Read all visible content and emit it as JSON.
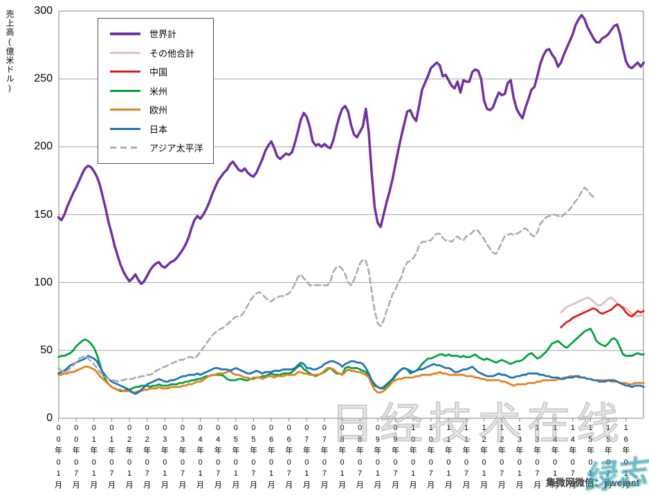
{
  "axes": {
    "y_title": "売上高(億米ドル)",
    "y_ticks": [
      "0",
      "50",
      "100",
      "150",
      "200",
      "250",
      "300"
    ],
    "y_tick_values": [
      0,
      50,
      100,
      150,
      200,
      250,
      300
    ],
    "x_ticks": [
      "00年01月",
      "00年07月",
      "01年01月",
      "01年07月",
      "02年01月",
      "02年07月",
      "03年01月",
      "03年07月",
      "04年01月",
      "04年07月",
      "05年01月",
      "05年07月",
      "06年01月",
      "06年07月",
      "07年01月",
      "07年07月",
      "08年01月",
      "08年07月",
      "09年01月",
      "09年07月",
      "10年01月",
      "10年07月",
      "11年01月",
      "11年07月",
      "12年01月",
      "12年07月",
      "13年01月",
      "13年07月",
      "14年01月",
      "14年07月",
      "15年01月",
      "15年07月",
      "16年01月"
    ]
  },
  "watermarks": {
    "center": "日经技术在线",
    "bottom_right": "集微网微信：jiweinet",
    "signature": "绿志岛"
  },
  "chart_data": {
    "type": "line",
    "title": "",
    "ylabel": "売上高(億米ドル)",
    "ylim": [
      0,
      300
    ],
    "x_start": "2000-01",
    "x_end": "2016-07",
    "x_interval": "monthly",
    "grid": true,
    "legend_position": "upper-left-box",
    "series": [
      {
        "name": "世界計",
        "key": "world",
        "color": "#7030a0",
        "dashed": false,
        "width": 3.5,
        "start_index": 0,
        "values": [
          148,
          146,
          150,
          156,
          161,
          166,
          170,
          175,
          180,
          184,
          186,
          185,
          182,
          178,
          172,
          163,
          154,
          144,
          136,
          127,
          120,
          113,
          108,
          104,
          101,
          103,
          106,
          102,
          99,
          101,
          105,
          109,
          112,
          114,
          115,
          112,
          111,
          113,
          115,
          116,
          118,
          121,
          124,
          128,
          133,
          140,
          146,
          149,
          147,
          150,
          154,
          159,
          165,
          170,
          175,
          178,
          181,
          183,
          187,
          189,
          186,
          183,
          182,
          184,
          181,
          179,
          178,
          181,
          186,
          191,
          197,
          201,
          204,
          199,
          193,
          191,
          193,
          195,
          194,
          196,
          203,
          211,
          220,
          225,
          222,
          215,
          204,
          201,
          202,
          200,
          202,
          200,
          199,
          205,
          214,
          222,
          228,
          230,
          226,
          216,
          209,
          207,
          211,
          215,
          228,
          210,
          180,
          155,
          144,
          141,
          150,
          159,
          167,
          176,
          187,
          198,
          208,
          217,
          226,
          227,
          222,
          219,
          230,
          242,
          247,
          252,
          258,
          260,
          262,
          260,
          252,
          253,
          249,
          245,
          243,
          248,
          240,
          249,
          248,
          248,
          255,
          257,
          256,
          250,
          234,
          228,
          227,
          229,
          235,
          240,
          238,
          239,
          247,
          249,
          236,
          228,
          224,
          221,
          229,
          235,
          242,
          244,
          252,
          261,
          267,
          271,
          272,
          268,
          265,
          259,
          262,
          268,
          273,
          278,
          283,
          290,
          294,
          297,
          294,
          288,
          284,
          280,
          277,
          277,
          280,
          281,
          283,
          286,
          289,
          290,
          283,
          272,
          263,
          259,
          258,
          260,
          262,
          259,
          262
        ]
      },
      {
        "name": "その他合計",
        "key": "others-total",
        "color": "#dfc0bf",
        "dashed": false,
        "width": 2.8,
        "start_index": 170,
        "values": [
          78,
          80,
          82,
          83,
          84,
          85,
          86,
          87,
          88,
          89,
          88,
          86,
          84,
          83,
          84,
          86,
          88,
          89,
          87,
          85,
          83,
          82,
          81,
          79,
          77,
          76,
          75,
          76,
          75
        ]
      },
      {
        "name": "中国",
        "key": "china",
        "color": "#dd1d1d",
        "dashed": false,
        "width": 2.8,
        "start_index": 170,
        "values": [
          67,
          69,
          71,
          72,
          74,
          75,
          76,
          77,
          78,
          79,
          80,
          81,
          80,
          78,
          77,
          78,
          79,
          80,
          82,
          84,
          83,
          81,
          78,
          76,
          75,
          77,
          79,
          78,
          79
        ]
      },
      {
        "name": "米州",
        "key": "americas",
        "color": "#00a23c",
        "dashed": false,
        "width": 2.8,
        "start_index": 0,
        "values": [
          45,
          46,
          46,
          47,
          48,
          50,
          53,
          55,
          57,
          58,
          57,
          55,
          52,
          47,
          40,
          33,
          28,
          25,
          23,
          22,
          21,
          20,
          20,
          21,
          21,
          22,
          23,
          23,
          24,
          24,
          24,
          23,
          24,
          24,
          25,
          24,
          24,
          24,
          25,
          25,
          25,
          26,
          26,
          27,
          27,
          28,
          28,
          29,
          29,
          30,
          31,
          31,
          32,
          32,
          32,
          32,
          31,
          29,
          28,
          28,
          28,
          29,
          29,
          28,
          28,
          29,
          29,
          30,
          30,
          31,
          31,
          32,
          33,
          32,
          32,
          32,
          33,
          33,
          33,
          34,
          36,
          38,
          39,
          36,
          35,
          33,
          32,
          31,
          32,
          33,
          34,
          36,
          37,
          35,
          33,
          33,
          32,
          37,
          38,
          37,
          37,
          37,
          36,
          35,
          34,
          31,
          26,
          24,
          23,
          22,
          22,
          24,
          26,
          28,
          31,
          34,
          36,
          37,
          36,
          33,
          34,
          35,
          37,
          40,
          42,
          44,
          44,
          45,
          46,
          47,
          47,
          46,
          47,
          46,
          46,
          46,
          45,
          46,
          45,
          45,
          46,
          47,
          45,
          44,
          43,
          44,
          43,
          42,
          41,
          42,
          43,
          42,
          41,
          40,
          41,
          42,
          42,
          43,
          45,
          47,
          48,
          46,
          44,
          45,
          47,
          49,
          52,
          55,
          56,
          57,
          55,
          53,
          52,
          54,
          56,
          58,
          60,
          62,
          64,
          65,
          66,
          62,
          57,
          55,
          54,
          53,
          55,
          58,
          59,
          57,
          52,
          47,
          46,
          46,
          46,
          47,
          48,
          47,
          47
        ]
      },
      {
        "name": "欧州",
        "key": "europe",
        "color": "#e0821e",
        "dashed": false,
        "width": 2.8,
        "start_index": 0,
        "values": [
          32,
          32,
          33,
          33,
          34,
          34,
          35,
          36,
          37,
          38,
          38,
          37,
          36,
          34,
          31,
          29,
          27,
          25,
          23,
          22,
          21,
          21,
          20,
          20,
          20,
          19,
          19,
          20,
          20,
          21,
          21,
          22,
          22,
          22,
          23,
          22,
          22,
          22,
          23,
          23,
          23,
          23,
          24,
          24,
          25,
          25,
          26,
          27,
          27,
          28,
          30,
          31,
          32,
          32,
          33,
          33,
          33,
          34,
          35,
          33,
          32,
          32,
          31,
          30,
          30,
          29,
          30,
          30,
          30,
          29,
          30,
          31,
          31,
          30,
          31,
          31,
          31,
          32,
          32,
          32,
          32,
          34,
          34,
          33,
          33,
          32,
          32,
          32,
          32,
          33,
          35,
          37,
          37,
          36,
          34,
          33,
          32,
          34,
          36,
          35,
          35,
          34,
          34,
          33,
          32,
          30,
          25,
          21,
          19,
          19,
          20,
          22,
          24,
          27,
          28,
          29,
          29,
          30,
          30,
          30,
          30,
          31,
          31,
          32,
          32,
          32,
          32,
          33,
          33,
          34,
          33,
          33,
          32,
          32,
          32,
          32,
          32,
          32,
          31,
          31,
          31,
          30,
          30,
          29,
          29,
          28,
          28,
          28,
          28,
          28,
          27,
          27,
          26,
          25,
          24,
          25,
          25,
          25,
          25,
          26,
          26,
          26,
          27,
          27,
          28,
          28,
          28,
          28,
          28,
          29,
          29,
          30,
          30,
          31,
          31,
          31,
          30,
          30,
          30,
          29,
          29,
          28,
          28,
          28,
          28,
          28,
          28,
          27,
          27,
          27,
          26,
          26,
          26,
          25,
          25,
          26,
          26,
          26,
          26
        ]
      },
      {
        "name": "日本",
        "key": "japan",
        "color": "#2074b8",
        "dashed": false,
        "width": 2.8,
        "start_index": 0,
        "values": [
          33,
          34,
          35,
          37,
          39,
          40,
          41,
          42,
          43,
          44,
          46,
          45,
          44,
          42,
          38,
          34,
          31,
          29,
          27,
          26,
          25,
          24,
          23,
          22,
          21,
          19,
          18,
          19,
          21,
          23,
          25,
          26,
          27,
          28,
          29,
          28,
          27,
          27,
          28,
          28,
          29,
          30,
          31,
          31,
          32,
          32,
          32,
          33,
          32,
          33,
          34,
          35,
          36,
          37,
          37,
          36,
          36,
          36,
          35,
          36,
          37,
          36,
          35,
          34,
          33,
          33,
          34,
          35,
          34,
          33,
          34,
          34,
          34,
          35,
          35,
          35,
          36,
          36,
          36,
          36,
          37,
          39,
          41,
          40,
          37,
          37,
          36,
          36,
          37,
          38,
          40,
          41,
          42,
          42,
          41,
          40,
          38,
          40,
          41,
          42,
          42,
          41,
          41,
          40,
          37,
          33,
          28,
          25,
          23,
          22,
          23,
          25,
          27,
          29,
          32,
          34,
          36,
          37,
          36,
          35,
          34,
          35,
          36,
          36,
          37,
          38,
          39,
          40,
          39,
          39,
          38,
          37,
          37,
          36,
          34,
          34,
          35,
          36,
          36,
          37,
          38,
          36,
          34,
          33,
          32,
          31,
          31,
          31,
          32,
          33,
          32,
          32,
          31,
          30,
          30,
          31,
          31,
          32,
          32,
          33,
          33,
          33,
          33,
          32,
          32,
          31,
          31,
          30,
          30,
          30,
          29,
          29,
          30,
          30,
          30,
          31,
          31,
          30,
          30,
          29,
          29,
          28,
          28,
          27,
          27,
          27,
          28,
          28,
          28,
          27,
          26,
          25,
          24,
          24,
          23,
          24,
          24,
          24,
          23
        ]
      },
      {
        "name": "アジア太平洋",
        "key": "asia-pacific",
        "color": "#ababab",
        "dashed": true,
        "width": 2.6,
        "start_index": 0,
        "values": [
          37,
          35,
          34,
          35,
          37,
          39,
          41,
          44,
          45,
          46,
          44,
          42,
          40,
          37,
          34,
          32,
          30,
          29,
          28,
          28,
          27,
          28,
          28,
          29,
          29,
          29,
          30,
          30,
          31,
          31,
          32,
          32,
          33,
          35,
          36,
          37,
          38,
          39,
          40,
          41,
          42,
          43,
          43,
          44,
          45,
          45,
          44,
          46,
          49,
          52,
          55,
          58,
          61,
          63,
          65,
          66,
          67,
          69,
          71,
          73,
          75,
          75,
          76,
          79,
          83,
          87,
          90,
          92,
          93,
          91,
          89,
          87,
          86,
          88,
          89,
          90,
          90,
          91,
          92,
          95,
          99,
          104,
          106,
          103,
          101,
          98,
          98,
          98,
          98,
          98,
          98,
          98,
          101,
          108,
          111,
          112,
          110,
          106,
          100,
          98,
          102,
          108,
          114,
          117,
          116,
          108,
          93,
          79,
          70,
          68,
          72,
          79,
          85,
          91,
          95,
          100,
          104,
          111,
          115,
          116,
          118,
          121,
          127,
          130,
          130,
          131,
          131,
          134,
          136,
          136,
          133,
          131,
          131,
          130,
          132,
          134,
          132,
          131,
          134,
          135,
          137,
          139,
          138,
          135,
          132,
          128,
          125,
          122,
          121,
          125,
          130,
          134,
          135,
          136,
          135,
          136,
          137,
          139,
          140,
          138,
          135,
          134,
          137,
          143,
          146,
          148,
          149,
          150,
          150,
          149,
          148,
          150,
          152,
          154,
          157,
          160,
          163,
          167,
          170,
          168,
          165,
          163,
          163
        ]
      }
    ]
  }
}
